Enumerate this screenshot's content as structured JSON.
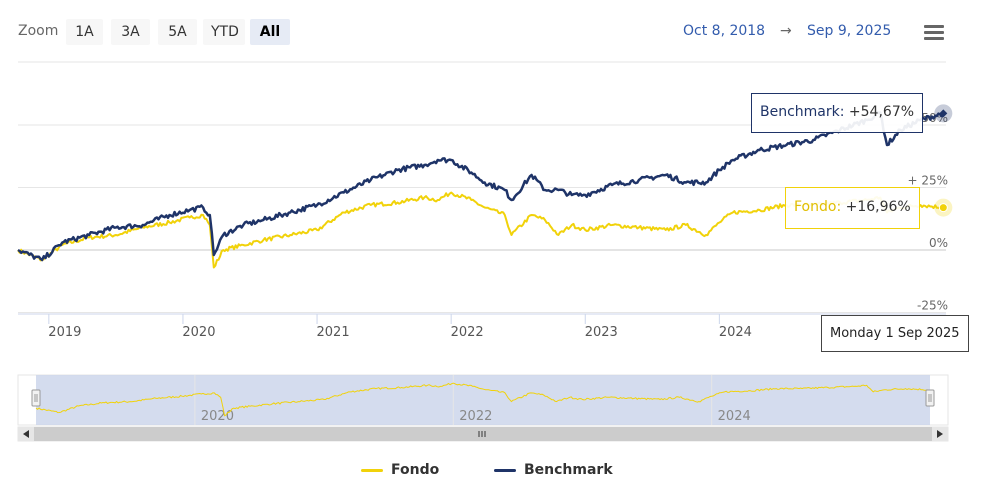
{
  "toolbar": {
    "zoom_label": "Zoom",
    "buttons": [
      {
        "label": "1A",
        "selected": false
      },
      {
        "label": "3A",
        "selected": false
      },
      {
        "label": "5A",
        "selected": false
      },
      {
        "label": "YTD",
        "selected": false
      },
      {
        "label": "All",
        "selected": true
      }
    ],
    "range_from": "Oct 8, 2018",
    "range_arrow": "→",
    "range_to": "Sep 9, 2025",
    "menu_icon": "hamburger-menu-icon"
  },
  "tooltips": {
    "benchmark_name": "Benchmark",
    "benchmark_value": "+54,67%",
    "fondo_name": "Fondo",
    "fondo_value": "+16,96%",
    "date": "Monday 1 Sep 2025"
  },
  "legend": [
    {
      "name": "Fondo",
      "color": "#f1d20a"
    },
    {
      "name": "Benchmark",
      "color": "#1f3468"
    }
  ],
  "colors": {
    "fondo": "#f1d20a",
    "benchmark": "#1f3468",
    "navigator_mask": "#ccd6eb"
  },
  "chart_data": {
    "type": "line",
    "y_ticks": [
      "-25%",
      "0%",
      "+ 25%",
      "50%"
    ],
    "y_tick_values": [
      -25,
      0,
      25,
      50
    ],
    "ylim": [
      -25,
      75
    ],
    "x_ticks": [
      "2019",
      "2020",
      "2021",
      "2022",
      "2023",
      "2024"
    ],
    "x_tick_values": [
      2019.0,
      2020.0,
      2021.0,
      2022.0,
      2023.0,
      2024.0
    ],
    "xlim": [
      2018.77,
      2025.69
    ],
    "navigator_ticks": [
      "2020",
      "2022",
      "2024"
    ],
    "navigator_tick_values": [
      2020.0,
      2022.0,
      2024.0
    ],
    "grid": true,
    "legend_position": "bottom",
    "series": [
      {
        "name": "Fondo",
        "x": [
          2018.77,
          2018.95,
          2019.1,
          2019.3,
          2019.5,
          2019.7,
          2019.9,
          2020.05,
          2020.15,
          2020.2,
          2020.23,
          2020.3,
          2020.45,
          2020.6,
          2020.8,
          2021.0,
          2021.2,
          2021.4,
          2021.6,
          2021.8,
          2021.9,
          2022.0,
          2022.15,
          2022.25,
          2022.4,
          2022.45,
          2022.6,
          2022.7,
          2022.8,
          2022.9,
          2023.0,
          2023.2,
          2023.4,
          2023.6,
          2023.75,
          2023.9,
          2024.0,
          2024.1,
          2024.3,
          2024.5,
          2024.7,
          2024.9,
          2025.1,
          2025.2,
          2025.25,
          2025.35,
          2025.5,
          2025.67
        ],
        "y": [
          0,
          -4,
          2,
          5,
          6,
          9,
          11,
          13,
          14,
          10,
          -7,
          0,
          2,
          4,
          6,
          8,
          15,
          18,
          19,
          21,
          20,
          23,
          20,
          17,
          14,
          6,
          14,
          12,
          6,
          10,
          8,
          10,
          9,
          8,
          10,
          6,
          11,
          15,
          16,
          18,
          18,
          19,
          20,
          21,
          15,
          17,
          18,
          16.96
        ]
      },
      {
        "name": "Benchmark",
        "x": [
          2018.77,
          2018.95,
          2019.1,
          2019.3,
          2019.5,
          2019.7,
          2019.9,
          2020.05,
          2020.15,
          2020.2,
          2020.23,
          2020.3,
          2020.45,
          2020.6,
          2020.8,
          2021.0,
          2021.2,
          2021.4,
          2021.6,
          2021.8,
          2021.9,
          2022.0,
          2022.15,
          2022.25,
          2022.4,
          2022.45,
          2022.6,
          2022.7,
          2022.8,
          2022.9,
          2023.0,
          2023.2,
          2023.4,
          2023.6,
          2023.75,
          2023.9,
          2024.0,
          2024.1,
          2024.3,
          2024.5,
          2024.7,
          2024.9,
          2025.1,
          2025.2,
          2025.25,
          2025.35,
          2025.5,
          2025.67
        ],
        "y": [
          0,
          -4,
          3,
          6,
          9,
          10,
          14,
          16,
          17,
          14,
          -2,
          6,
          10,
          12,
          15,
          18,
          23,
          28,
          32,
          34,
          36,
          36,
          31,
          27,
          24,
          20,
          30,
          24,
          24,
          22,
          22,
          26,
          28,
          30,
          27,
          27,
          32,
          36,
          40,
          42,
          44,
          48,
          52,
          55,
          42,
          48,
          52,
          54.67
        ]
      }
    ]
  }
}
